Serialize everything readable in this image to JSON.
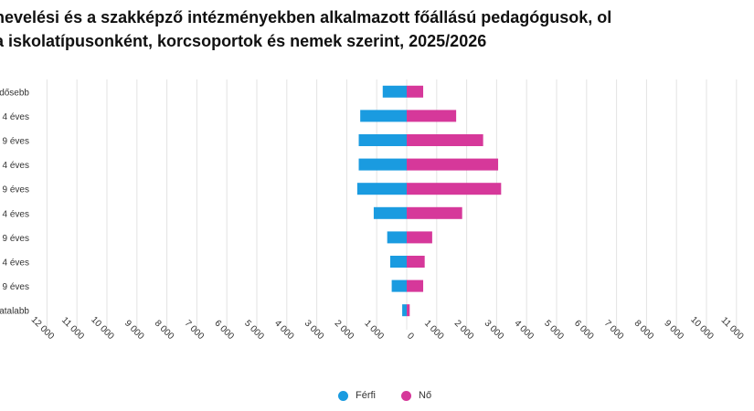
{
  "chart_data": {
    "type": "bar",
    "orientation": "horizontal-population-pyramid",
    "title": "nevelési és a szakképző intézményekben alkalmazott főállású pedagógusok, ol a iskolatípusonként, korcsoportok és nemek szerint, 2025/2026",
    "title_lines": [
      "nevelési és a szakképző intézményekben alkalmazott főállású pedagógusok, ol",
      "a iskolatípusonként, korcsoportok és nemek szerint, 2025/2026"
    ],
    "categories": [
      "dősebb",
      "4 éves",
      "9 éves",
      "4 éves",
      "9 éves",
      "4 éves",
      "9 éves",
      "4 éves",
      "9 éves",
      "atalabb"
    ],
    "series": [
      {
        "name": "Férfi",
        "color": "#1a9be0",
        "values": [
          800,
          1550,
          1600,
          1600,
          1650,
          1100,
          650,
          550,
          500,
          150
        ]
      },
      {
        "name": "Nő",
        "color": "#d6389a",
        "values": [
          550,
          1650,
          2550,
          3050,
          3150,
          1850,
          850,
          600,
          550,
          100
        ]
      }
    ],
    "x_ticks": [
      "12 000",
      "11 000",
      "10 000",
      "9 000",
      "8 000",
      "7 000",
      "6 000",
      "5 000",
      "4 000",
      "3 000",
      "2 000",
      "1 000",
      "0",
      "1 000",
      "2 000",
      "3 000",
      "4 000",
      "5 000",
      "6 000",
      "7 000",
      "8 000",
      "9 000",
      "10 000",
      "11 000"
    ],
    "xlim": [
      -12000,
      11000
    ],
    "grid": true,
    "legend_position": "bottom"
  }
}
